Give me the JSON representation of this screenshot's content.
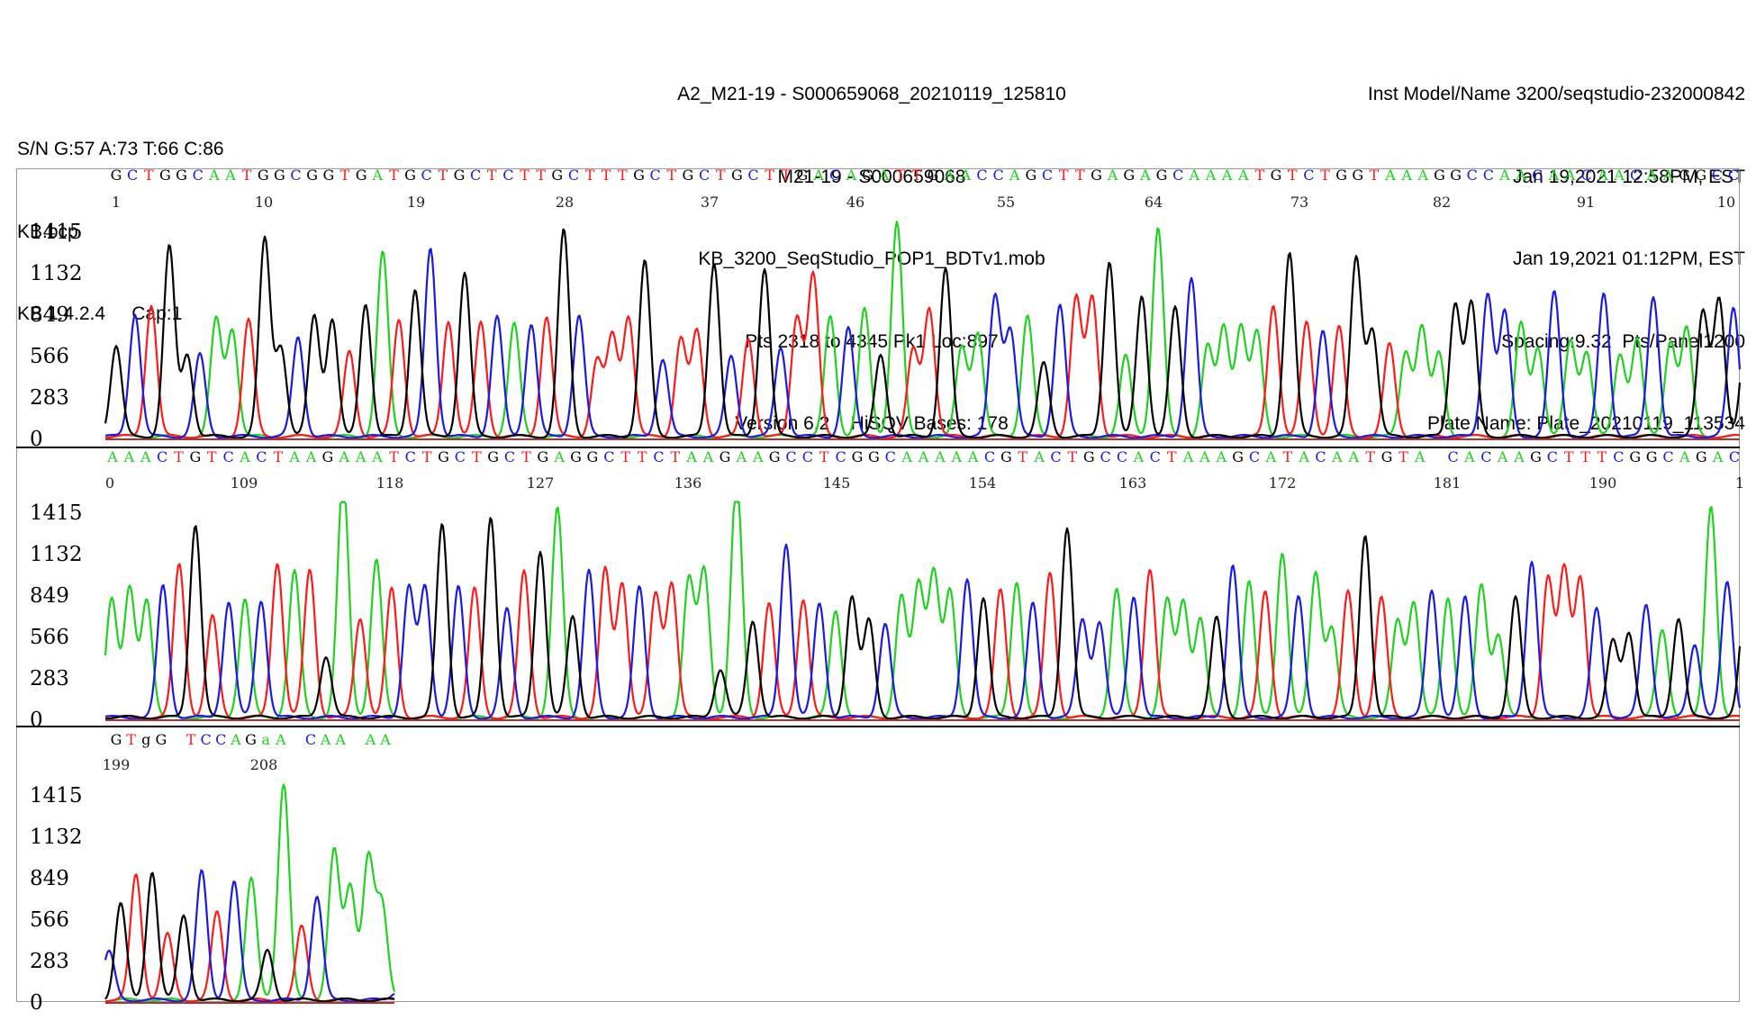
{
  "header": {
    "left": [
      "S/N G:57 A:73 T:66 C:86",
      "KB.bcp",
      "KB 1.4.2.4     Cap:1"
    ],
    "center": [
      "A2_M21-19 - S000659068_20210119_125810",
      "M21-19 - S000659068",
      "KB_3200_SeqStudio_POP1_BDTv1.mob",
      "Pts 2318 to 4345 Pk1 Loc:897",
      "Version 6.2    HiSQV Bases: 178"
    ],
    "right": [
      "Inst Model/Name 3200/seqstudio-232000842",
      "Jan 19,2021 12:58PM, EST",
      "Jan 19,2021 01:12PM, EST",
      "Spacing:9.32  Pts/Panel1200",
      "Plate Name: Plate_20210119_113534"
    ]
  },
  "colors": {
    "A": "#1fd21f",
    "C": "#1a1ae0",
    "G": "#000000",
    "T": "#ff1a1a"
  },
  "chart_data": {
    "type": "line",
    "title": "",
    "y_ticks": [
      0,
      283,
      566,
      849,
      1132,
      1415
    ],
    "ylim": [
      0,
      1415
    ],
    "panels": [
      {
        "sequence": "GCTGGCAATGGCGGTGATGCTGCTCTTGCTTTGCTGCTGCTTGACAGATTGAACCAGCTTGAGAGCAAAATGTCTGGTAAAGGCCAACAACAACAAGGCC",
        "position_labels": [
          "1",
          "10",
          "19",
          "28",
          "37",
          "46",
          "55",
          "64",
          "73",
          "82",
          "91",
          "10"
        ],
        "peaks": [
          [
            97,
            "G",
            600
          ],
          [
            129,
            "G",
            620
          ],
          [
            150,
            "C",
            840
          ],
          [
            168,
            "T",
            900
          ],
          [
            188,
            "G",
            1300
          ],
          [
            208,
            "G",
            560
          ],
          [
            222,
            "C",
            560
          ],
          [
            240,
            "A",
            800
          ],
          [
            258,
            "A",
            730
          ],
          [
            276,
            "T",
            800
          ],
          [
            294,
            "G",
            1350
          ],
          [
            312,
            "G",
            610
          ],
          [
            331,
            "C",
            680
          ],
          [
            349,
            "G",
            830
          ],
          [
            369,
            "G",
            800
          ],
          [
            388,
            "T",
            580
          ],
          [
            406,
            "G",
            910
          ],
          [
            425,
            "A",
            1260
          ],
          [
            443,
            "T",
            800
          ],
          [
            461,
            "G",
            1010
          ],
          [
            478,
            "C",
            1290
          ],
          [
            498,
            "T",
            790
          ],
          [
            516,
            "G",
            1120
          ],
          [
            534,
            "T",
            780
          ],
          [
            552,
            "C",
            820
          ],
          [
            571,
            "A",
            770
          ],
          [
            590,
            "C",
            770
          ],
          [
            607,
            "T",
            820
          ],
          [
            626,
            "G",
            1410
          ],
          [
            643,
            "C",
            830
          ],
          [
            663,
            "T",
            520
          ],
          [
            680,
            "T",
            690
          ],
          [
            698,
            "T",
            820
          ],
          [
            716,
            "G",
            1200
          ],
          [
            736,
            "C",
            530
          ],
          [
            756,
            "T",
            670
          ],
          [
            774,
            "T",
            720
          ],
          [
            793,
            "G",
            1190
          ],
          [
            812,
            "C",
            550
          ],
          [
            831,
            "T",
            670
          ],
          [
            849,
            "G",
            1150
          ],
          [
            867,
            "C",
            610
          ],
          [
            885,
            "T",
            820
          ],
          [
            903,
            "T",
            1110
          ],
          [
            922,
            "A",
            820
          ],
          [
            942,
            "C",
            740
          ],
          [
            960,
            "A",
            870
          ],
          [
            978,
            "G",
            560
          ],
          [
            996,
            "A",
            1470
          ],
          [
            1014,
            "T",
            590
          ],
          [
            1032,
            "T",
            880
          ],
          [
            1050,
            "G",
            1150
          ],
          [
            1068,
            "A",
            610
          ],
          [
            1086,
            "A",
            710
          ],
          [
            1105,
            "C",
            960
          ],
          [
            1122,
            "C",
            730
          ],
          [
            1141,
            "A",
            830
          ],
          [
            1159,
            "G",
            500
          ],
          [
            1177,
            "C",
            900
          ],
          [
            1195,
            "T",
            950
          ],
          [
            1213,
            "T",
            950
          ],
          [
            1232,
            "G",
            1200
          ],
          [
            1250,
            "A",
            550
          ],
          [
            1268,
            "G",
            960
          ],
          [
            1286,
            "A",
            1430
          ],
          [
            1305,
            "G",
            880
          ],
          [
            1323,
            "C",
            1080
          ],
          [
            1341,
            "A",
            620
          ],
          [
            1359,
            "A",
            750
          ],
          [
            1378,
            "A",
            760
          ],
          [
            1396,
            "A",
            710
          ],
          [
            1414,
            "T",
            900
          ],
          [
            1432,
            "G",
            1260
          ],
          [
            1451,
            "T",
            780
          ],
          [
            1469,
            "C",
            720
          ],
          [
            1487,
            "T",
            750
          ],
          [
            1506,
            "G",
            1220
          ],
          [
            1524,
            "G",
            730
          ],
          [
            1543,
            "T",
            630
          ],
          [
            1561,
            "A",
            580
          ],
          [
            1579,
            "A",
            750
          ],
          [
            1598,
            "A",
            570
          ],
          [
            1616,
            "G",
            910
          ],
          [
            1634,
            "G",
            910
          ],
          [
            1652,
            "C",
            980
          ],
          [
            1671,
            "C",
            850
          ],
          [
            1689,
            "A",
            770
          ],
          [
            1708,
            "A",
            610
          ],
          [
            1726,
            "C",
            990
          ],
          [
            1744,
            "A",
            650
          ],
          [
            1762,
            "A",
            580
          ],
          [
            1781,
            "C",
            980
          ],
          [
            1799,
            "A",
            560
          ],
          [
            1818,
            "A",
            670
          ],
          [
            1836,
            "C",
            960
          ],
          [
            1855,
            "A",
            650
          ],
          [
            1873,
            "A",
            740
          ],
          [
            1891,
            "G",
            850
          ],
          [
            1909,
            "G",
            950
          ],
          [
            1925,
            "C",
            880
          ],
          [
            1940,
            "G",
            820
          ]
        ]
      },
      {
        "sequence": "AAACTGTCACTAAGAAATCTGCTGCTGAGGCTTCTAAGAAGCCTCGGCAAAAACGTACTGCCACTAAAGCATACAATGTA CACAAGCTTTCGGCAGAC",
        "position_labels": [
          "0",
          "109",
          "118",
          "127",
          "136",
          "145",
          "154",
          "163",
          "172",
          "181",
          "190",
          "1"
        ],
        "peaks": [
          [
            124,
            "A",
            820
          ],
          [
            144,
            "A",
            880
          ],
          [
            163,
            "A",
            810
          ],
          [
            181,
            "C",
            900
          ],
          [
            199,
            "T",
            1050
          ],
          [
            217,
            "G",
            1320
          ],
          [
            236,
            "T",
            690
          ],
          [
            254,
            "C",
            790
          ],
          [
            272,
            "A",
            810
          ],
          [
            290,
            "C",
            800
          ],
          [
            308,
            "T",
            1060
          ],
          [
            327,
            "A",
            1000
          ],
          [
            344,
            "T",
            1010
          ],
          [
            362,
            "G",
            420
          ],
          [
            381,
            "A",
            1630
          ],
          [
            400,
            "T",
            680
          ],
          [
            418,
            "A",
            1080
          ],
          [
            435,
            "T",
            880
          ],
          [
            454,
            "C",
            890
          ],
          [
            472,
            "C",
            890
          ],
          [
            491,
            "G",
            1320
          ],
          [
            509,
            "C",
            890
          ],
          [
            527,
            "T",
            880
          ],
          [
            545,
            "G",
            1370
          ],
          [
            563,
            "C",
            740
          ],
          [
            582,
            "T",
            1000
          ],
          [
            600,
            "G",
            1140
          ],
          [
            619,
            "A",
            1430
          ],
          [
            636,
            "G",
            690
          ],
          [
            654,
            "C",
            1000
          ],
          [
            672,
            "T",
            1010
          ],
          [
            691,
            "T",
            920
          ],
          [
            710,
            "C",
            890
          ],
          [
            728,
            "T",
            840
          ],
          [
            746,
            "T",
            920
          ],
          [
            765,
            "A",
            940
          ],
          [
            782,
            "A",
            1010
          ],
          [
            800,
            "G",
            330
          ],
          [
            818,
            "A",
            1630
          ],
          [
            836,
            "G",
            660
          ],
          [
            854,
            "T",
            780
          ],
          [
            873,
            "C",
            1190
          ],
          [
            892,
            "T",
            810
          ],
          [
            910,
            "C",
            780
          ],
          [
            928,
            "A",
            730
          ],
          [
            946,
            "G",
            830
          ],
          [
            965,
            "G",
            660
          ],
          [
            983,
            "C",
            640
          ],
          [
            1001,
            "A",
            830
          ],
          [
            1020,
            "A",
            910
          ],
          [
            1037,
            "A",
            1000
          ],
          [
            1055,
            "A",
            860
          ],
          [
            1074,
            "C",
            950
          ],
          [
            1092,
            "G",
            820
          ],
          [
            1111,
            "T",
            870
          ],
          [
            1129,
            "A",
            930
          ],
          [
            1147,
            "C",
            780
          ],
          [
            1166,
            "T",
            990
          ],
          [
            1185,
            "G",
            1300
          ],
          [
            1202,
            "C",
            670
          ],
          [
            1221,
            "C",
            650
          ],
          [
            1240,
            "A",
            880
          ],
          [
            1259,
            "C",
            830
          ],
          [
            1277,
            "T",
            1020
          ],
          [
            1296,
            "A",
            800
          ],
          [
            1314,
            "A",
            790
          ],
          [
            1333,
            "A",
            680
          ],
          [
            1351,
            "G",
            680
          ],
          [
            1369,
            "C",
            1040
          ],
          [
            1387,
            "A",
            930
          ],
          [
            1405,
            "T",
            860
          ],
          [
            1424,
            "A",
            1130
          ],
          [
            1442,
            "C",
            830
          ],
          [
            1461,
            "A",
            990
          ],
          [
            1479,
            "A",
            610
          ],
          [
            1497,
            "T",
            860
          ],
          [
            1516,
            "G",
            1250
          ],
          [
            1534,
            "T",
            820
          ],
          [
            1552,
            "A",
            660
          ],
          [
            1570,
            "A",
            790
          ],
          [
            1590,
            "C",
            870
          ],
          [
            1608,
            "A",
            820
          ],
          [
            1627,
            "C",
            820
          ],
          [
            1645,
            "A",
            900
          ],
          [
            1664,
            "A",
            570
          ],
          [
            1683,
            "G",
            820
          ],
          [
            1701,
            "C",
            1070
          ],
          [
            1719,
            "T",
            960
          ],
          [
            1737,
            "T",
            1010
          ],
          [
            1755,
            "T",
            960
          ],
          [
            1773,
            "C",
            740
          ],
          [
            1791,
            "G",
            520
          ],
          [
            1809,
            "G",
            580
          ],
          [
            1828,
            "C",
            770
          ],
          [
            1846,
            "A",
            600
          ],
          [
            1864,
            "G",
            680
          ],
          [
            1882,
            "C",
            500
          ],
          [
            1900,
            "A",
            1450
          ],
          [
            1918,
            "C",
            920
          ],
          [
            1938,
            "G",
            760
          ]
        ]
      },
      {
        "sequence": "GTgG TCCAGaA CAA AA",
        "position_labels": [
          "199",
          "208"
        ],
        "peaks": [
          [
            121,
            "C",
            330
          ],
          [
            134,
            "G",
            660
          ],
          [
            151,
            "T",
            860
          ],
          [
            169,
            "G",
            880
          ],
          [
            186,
            "T",
            450
          ],
          [
            204,
            "G",
            580
          ],
          [
            224,
            "C",
            880
          ],
          [
            241,
            "T",
            600
          ],
          [
            260,
            "C",
            810
          ],
          [
            279,
            "A",
            830
          ],
          [
            297,
            "G",
            340
          ],
          [
            315,
            "A",
            1490
          ],
          [
            335,
            "T",
            500
          ],
          [
            352,
            "C",
            710
          ],
          [
            371,
            "A",
            1030
          ],
          [
            389,
            "A",
            770
          ],
          [
            409,
            "A",
            980
          ],
          [
            424,
            "A",
            650
          ],
          [
            441,
            "C",
            60
          ]
        ]
      }
    ]
  }
}
